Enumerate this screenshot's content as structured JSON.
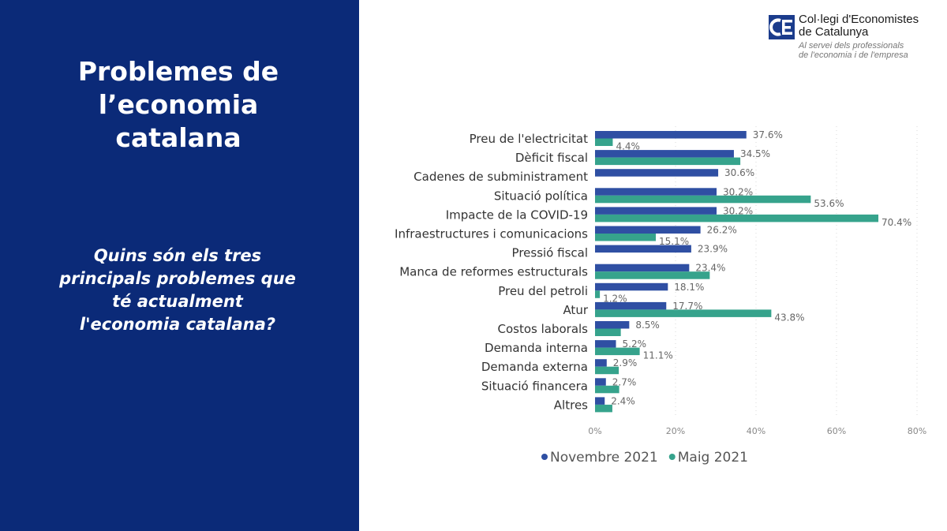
{
  "slide": {
    "title_lines": [
      "Problemes de",
      "l’economia",
      "catalana"
    ],
    "question_lines": [
      "Quins són els tres",
      "principals problemes que",
      "té actualment",
      "l'economia catalana?"
    ]
  },
  "logo": {
    "mark": "CE",
    "name_lines": [
      "Col·legi d'Economistes",
      "de Catalunya"
    ],
    "tagline_lines": [
      "Al servei dels professionals",
      "de l'economia i de l'empresa"
    ]
  },
  "colors": {
    "background_left": "#0b2a78",
    "series_nov": "#2f4fa3",
    "series_maig": "#36a38c"
  },
  "chart_data": {
    "type": "bar",
    "orientation": "horizontal",
    "categories": [
      "Preu de l'electricitat",
      "Dèficit fiscal",
      "Cadenes de subministrament",
      "Situació política",
      "Impacte de la COVID-19",
      "Infraestructures i comunicacions",
      "Pressió fiscal",
      "Manca de reformes estructurals",
      "Preu del petroli",
      "Atur",
      "Costos laborals",
      "Demanda interna",
      "Demanda externa",
      "Situació financera",
      "Altres"
    ],
    "series": [
      {
        "name": "Novembre 2021",
        "values": [
          37.6,
          34.5,
          30.6,
          30.2,
          30.2,
          26.2,
          23.9,
          23.4,
          18.1,
          17.7,
          8.5,
          5.2,
          2.9,
          2.7,
          2.4
        ],
        "labels": [
          "37.6%",
          "34.5%",
          "30.6%",
          "30.2%",
          "30.2%",
          "26.2%",
          "23.9%",
          "23.4%",
          "18.1%",
          "17.7%",
          "8.5%",
          "5.2%",
          "2.9%",
          "2.7%",
          "2.4%"
        ]
      },
      {
        "name": "Maig 2021",
        "values": [
          4.4,
          36.1,
          null,
          53.6,
          70.4,
          15.1,
          null,
          28.5,
          1.2,
          43.8,
          6.4,
          11.1,
          5.9,
          6.0,
          4.3
        ],
        "labels": [
          "4.4%",
          null,
          null,
          "53.6%",
          "70.4%",
          "15.1%",
          null,
          null,
          "1.2%",
          "43.8%",
          null,
          "11.1%",
          null,
          null,
          null
        ]
      }
    ],
    "xticks": [
      "0%",
      "20%",
      "40%",
      "60%",
      "80%"
    ],
    "xtick_values": [
      0,
      20,
      40,
      60,
      80
    ],
    "xlim": [
      0,
      80
    ],
    "grid": "vertical dotted",
    "legend_position": "bottom"
  }
}
